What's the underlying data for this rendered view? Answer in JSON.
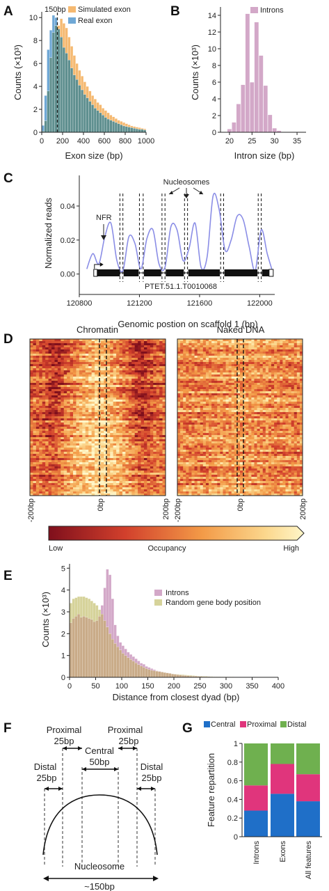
{
  "panels": {
    "A": "A",
    "B": "B",
    "C": "C",
    "D": "D",
    "E": "E",
    "F": "F",
    "G": "G"
  },
  "colors": {
    "simulated": "#f5b971",
    "real": "#6fa8d6",
    "overlap": "#5f8f8f",
    "introns": "#d3a8c8",
    "random": "#d6d39a",
    "e_overlap": "#c9ab88",
    "central": "#1f6fc8",
    "proximal": "#e0357c",
    "distal": "#6fb04f",
    "signal": "#8a8de6"
  },
  "chart_data": [
    {
      "id": "A",
      "type": "bar",
      "xlabel": "Exon size (bp)",
      "ylabel": "Counts (×10³)",
      "xlim": [
        0,
        1000
      ],
      "ylim": [
        0,
        10.5
      ],
      "xticks": [
        "0",
        "200",
        "400",
        "600",
        "800",
        "1000"
      ],
      "yticks": [
        "0",
        "2",
        "4",
        "6",
        "8",
        "10"
      ],
      "annotation": "150bp",
      "bin_width": 25,
      "series": [
        {
          "name": "Simulated exon",
          "values": [
            0.1,
            1.0,
            3.6,
            6.5,
            8.7,
            9.3,
            9.3,
            9.9,
            9.5,
            9.1,
            8.3,
            7.5,
            6.7,
            6.0,
            5.4,
            4.9,
            4.4,
            4.0,
            3.6,
            3.2,
            2.9,
            2.6,
            2.4,
            2.1,
            1.9,
            1.7,
            1.5,
            1.35,
            1.2,
            1.05,
            0.95,
            0.85,
            0.75,
            0.65,
            0.55,
            0.5,
            0.45,
            0.4,
            0.35,
            0.3
          ]
        },
        {
          "name": "Real exon",
          "values": [
            0.6,
            3.2,
            7.2,
            8.9,
            10.2,
            10.0,
            9.0,
            8.3,
            7.4,
            6.9,
            6.3,
            5.6,
            5.0,
            4.6,
            4.1,
            3.7,
            3.3,
            3.0,
            2.7,
            2.4,
            2.1,
            1.9,
            1.7,
            1.5,
            1.3,
            1.15,
            1.05,
            0.95,
            0.85,
            0.75,
            0.65,
            0.55,
            0.5,
            0.45,
            0.4,
            0.35,
            0.3,
            0.25,
            0.25,
            0.2
          ]
        }
      ]
    },
    {
      "id": "B",
      "type": "bar",
      "xlabel": "Intron size (bp)",
      "ylabel": "Counts (×10³)",
      "xlim": [
        18,
        37
      ],
      "ylim": [
        0,
        15
      ],
      "xticks": [
        "20",
        "25",
        "30",
        "35"
      ],
      "xtick_values": [
        20,
        25,
        30,
        35
      ],
      "yticks": [
        "0",
        "2",
        "4",
        "6",
        "8",
        "10",
        "12",
        "14"
      ],
      "series": [
        {
          "name": "Introns",
          "x": [
            20,
            21,
            22,
            23,
            24,
            25,
            26,
            27,
            28,
            29,
            30,
            31
          ],
          "values": [
            0.4,
            1.2,
            3.4,
            5.7,
            14.2,
            6.0,
            13.2,
            9.2,
            5.6,
            2.1,
            0.5,
            0.2
          ]
        }
      ]
    },
    {
      "id": "C",
      "type": "line",
      "xlabel": "Genomic postion on scaffold 1 (bp)",
      "ylabel": "Normalized reads",
      "xlim": [
        120800,
        122100
      ],
      "ylim": [
        -0.012,
        0.058
      ],
      "xticks": [
        "120800",
        "121200",
        "121600",
        "122000"
      ],
      "xtick_values": [
        120800,
        121200,
        121600,
        122000
      ],
      "yticks": [
        "0.00",
        "0.02",
        "0.04"
      ],
      "ytick_values": [
        0.0,
        0.02,
        0.04
      ],
      "nfr_label": "NFR",
      "nucleosomes_label": "Nucleosomes",
      "gene_label": "PTET.51.1.T0010068",
      "x": [
        120850,
        120890,
        120930,
        120970,
        121010,
        121050,
        121090,
        121130,
        121170,
        121210,
        121250,
        121290,
        121330,
        121370,
        121410,
        121450,
        121490,
        121530,
        121570,
        121610,
        121650,
        121690,
        121730,
        121770,
        121810,
        121850,
        121890,
        121930,
        121970,
        122010,
        122050,
        122080
      ],
      "values": [
        0.003,
        0.012,
        0.006,
        0.022,
        0.03,
        0.008,
        0.002,
        0.022,
        0.018,
        0.003,
        0.021,
        0.026,
        0.006,
        0.004,
        0.028,
        0.026,
        0.008,
        0.015,
        0.03,
        0.004,
        0.01,
        0.046,
        0.038,
        0.014,
        0.02,
        0.034,
        0.032,
        0.016,
        0.002,
        0.026,
        0.012,
        0.003
      ],
      "dashed_lines_x": [
        121070,
        121090,
        121200,
        121225,
        121350,
        121370,
        121500,
        121520,
        121740,
        121760,
        121990,
        122010
      ],
      "gene_exons": [
        [
          120910,
          121070
        ],
        [
          121095,
          121195
        ],
        [
          121230,
          121345
        ],
        [
          121375,
          121495
        ],
        [
          121525,
          121735
        ],
        [
          121765,
          121985
        ],
        [
          122015,
          122090
        ]
      ]
    },
    {
      "id": "D",
      "type": "heatmap",
      "titles": [
        "Chromatin",
        "Naked DNA"
      ],
      "xticks": [
        "-200bp",
        "0bp",
        "200bp"
      ],
      "colorbar_labels": [
        "Low",
        "Occupancy",
        "High"
      ]
    },
    {
      "id": "E",
      "type": "bar",
      "xlabel": "Distance from closest dyad (bp)",
      "ylabel": "Counts (×10³)",
      "xlim": [
        0,
        400
      ],
      "ylim": [
        0,
        5.2
      ],
      "xticks": [
        "0",
        "50",
        "100",
        "150",
        "200",
        "250",
        "300",
        "350",
        "400"
      ],
      "yticks": [
        "0",
        "1",
        "2",
        "3",
        "4",
        "5"
      ],
      "bin_width": 5,
      "series": [
        {
          "name": "Introns",
          "values": [
            2.5,
            2.7,
            2.8,
            2.9,
            2.75,
            2.8,
            2.75,
            2.7,
            2.65,
            2.55,
            2.6,
            2.8,
            3.3,
            4.1,
            4.95,
            4.7,
            3.6,
            2.4,
            1.9,
            1.6,
            1.45,
            1.3,
            1.15,
            1.05,
            0.95,
            0.85,
            0.75,
            0.65,
            0.6,
            0.5,
            0.45,
            0.4,
            0.35,
            0.3,
            0.28,
            0.25,
            0.22,
            0.2,
            0.18,
            0.15,
            0.14,
            0.12,
            0.1,
            0.09,
            0.08,
            0.07,
            0.06,
            0.05,
            0.05,
            0.04,
            0.04,
            0.03,
            0.03,
            0.03,
            0.02,
            0.02,
            0.02,
            0.02,
            0.01,
            0.01,
            0.01,
            0.01,
            0.01,
            0.01,
            0.01,
            0.01,
            0.01,
            0.01,
            0.01,
            0.01,
            0.01,
            0.01,
            0.01,
            0.01,
            0.01,
            0.01,
            0.01,
            0.01,
            0.01,
            0.01
          ]
        },
        {
          "name": "Random gene body position",
          "values": [
            3.4,
            3.6,
            3.65,
            3.7,
            3.7,
            3.7,
            3.65,
            3.6,
            3.5,
            3.4,
            3.3,
            3.1,
            2.9,
            2.6,
            2.3,
            2.0,
            1.75,
            1.55,
            1.4,
            1.25,
            1.1,
            1.0,
            0.9,
            0.82,
            0.74,
            0.66,
            0.58,
            0.52,
            0.46,
            0.4,
            0.36,
            0.32,
            0.3,
            0.28,
            0.26,
            0.24,
            0.22,
            0.2,
            0.18,
            0.16,
            0.15,
            0.14,
            0.13,
            0.12,
            0.11,
            0.1,
            0.09,
            0.08,
            0.07,
            0.06,
            0.06,
            0.05,
            0.05,
            0.04,
            0.04,
            0.03,
            0.03,
            0.03,
            0.02,
            0.02,
            0.02,
            0.02,
            0.02,
            0.01,
            0.01,
            0.01,
            0.01,
            0.01,
            0.01,
            0.01,
            0.01,
            0.01,
            0.01,
            0.01,
            0.01,
            0.01,
            0.01,
            0.01,
            0.01,
            0.01
          ]
        }
      ]
    },
    {
      "id": "G",
      "type": "bar",
      "stacked": true,
      "ylabel": "Feature repartition",
      "ylim": [
        0,
        1
      ],
      "yticks": [
        "0",
        "0.2",
        "0.4",
        "0.6",
        "0.8",
        "1"
      ],
      "categories": [
        "Introns",
        "Exons",
        "All features"
      ],
      "series": [
        {
          "name": "Central",
          "values": [
            0.28,
            0.46,
            0.38
          ]
        },
        {
          "name": "Proximal",
          "values": [
            0.27,
            0.32,
            0.29
          ]
        },
        {
          "name": "Distal",
          "values": [
            0.45,
            0.22,
            0.33
          ]
        }
      ]
    }
  ],
  "diagram_f": {
    "proximal_left": [
      "Proximal",
      "25bp"
    ],
    "proximal_right": [
      "Proximal",
      "25bp"
    ],
    "central": [
      "Central",
      "50bp"
    ],
    "distal_left": [
      "Distal",
      "25bp"
    ],
    "distal_right": [
      "Distal",
      "25bp"
    ],
    "nucleosome": "Nucleosome",
    "size": "~150bp"
  }
}
